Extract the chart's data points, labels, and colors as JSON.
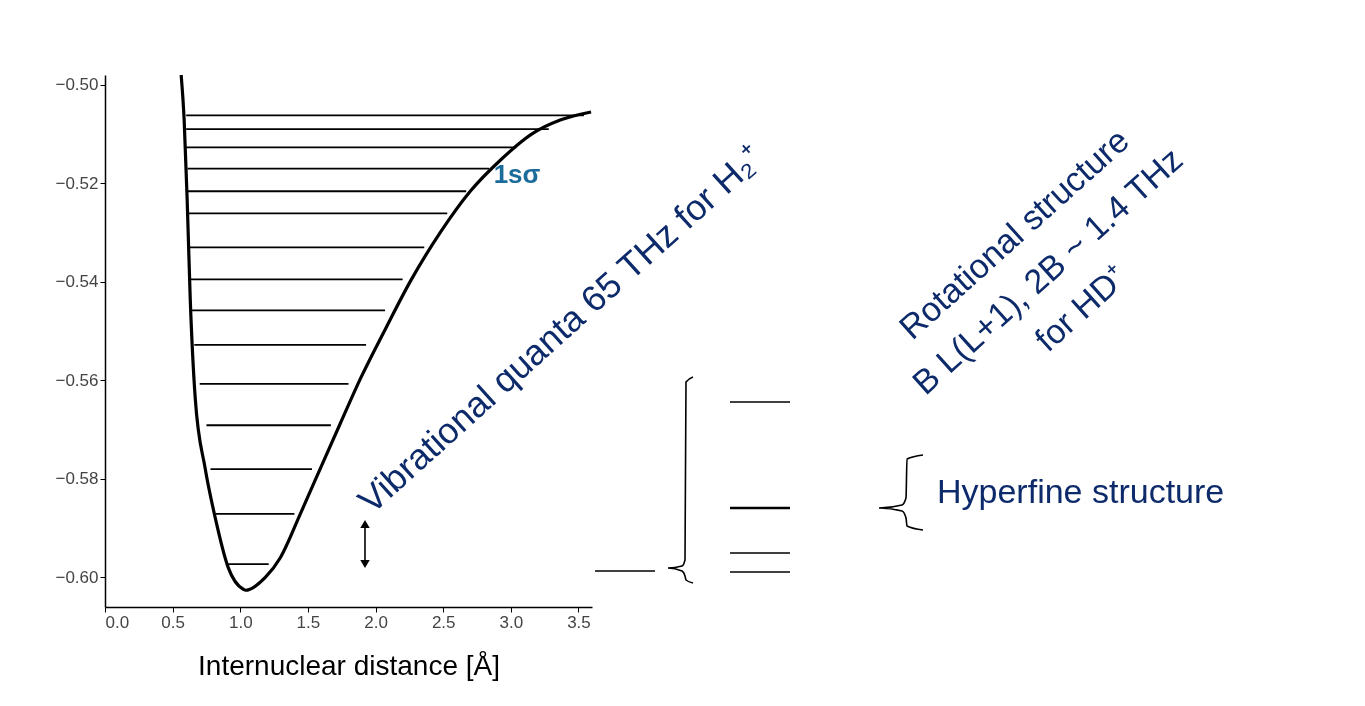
{
  "chart_data": {
    "type": "line",
    "xlabel": "Internuclear distance [Å]",
    "xlim": [
      0,
      3.6
    ],
    "ylim": [
      -0.606,
      -0.498
    ],
    "xticks": [
      {
        "value": 0,
        "label": "0.0"
      },
      {
        "value": 0.5,
        "label": "0.5"
      },
      {
        "value": 1,
        "label": "1.0"
      },
      {
        "value": 1.5,
        "label": "1.5"
      },
      {
        "value": 2,
        "label": "2.0"
      },
      {
        "value": 2.5,
        "label": "2.5"
      },
      {
        "value": 3,
        "label": "3.0"
      },
      {
        "value": 3.5,
        "label": "3.5"
      }
    ],
    "yticks": [
      {
        "value": -0.5,
        "label": "−0.50"
      },
      {
        "value": -0.52,
        "label": "−0.52"
      },
      {
        "value": -0.54,
        "label": "−0.54"
      },
      {
        "value": -0.56,
        "label": "−0.56"
      },
      {
        "value": -0.58,
        "label": "−0.58"
      },
      {
        "value": -0.6,
        "label": "−0.60"
      }
    ],
    "grid": false,
    "marker": "none",
    "line_style": "solid",
    "series": [
      {
        "color": "#000000",
        "x": [
          0.563,
          0.585,
          0.607,
          0.63,
          0.667,
          0.74,
          0.815,
          0.911,
          1.022,
          1.04,
          1.185,
          1.296,
          1.444,
          1.593,
          1.74,
          1.889,
          2.074,
          2.259,
          2.48,
          2.7,
          2.926,
          3.148,
          3.37,
          3.593
        ],
        "values": [
          -0.498,
          -0.507,
          -0.523,
          -0.5434,
          -0.5636,
          -0.5778,
          -0.5879,
          -0.598,
          -0.6024,
          -0.6026,
          -0.6,
          -0.596,
          -0.5871,
          -0.5778,
          -0.5687,
          -0.5596,
          -0.5495,
          -0.5398,
          -0.5299,
          -0.5216,
          -0.5152,
          -0.5101,
          -0.5071,
          -0.5055
        ]
      },
      {
        "color": "#000000",
        "x": [
          0.6,
          3.54
        ],
        "values": [
          -0.5062,
          -0.5062
        ]
      },
      {
        "color": "#000000",
        "x": [
          0.6,
          3.28
        ],
        "values": [
          -0.509,
          -0.509
        ]
      },
      {
        "color": "#000000",
        "x": [
          0.6,
          3.04
        ],
        "values": [
          -0.5127,
          -0.5127
        ]
      },
      {
        "color": "#000000",
        "x": [
          0.61,
          2.84
        ],
        "values": [
          -0.517,
          -0.517
        ]
      },
      {
        "color": "#000000",
        "x": [
          0.61,
          2.67
        ],
        "values": [
          -0.5216,
          -0.5216
        ]
      },
      {
        "color": "#000000",
        "x": [
          0.61,
          2.53
        ],
        "values": [
          -0.5261,
          -0.5261
        ]
      },
      {
        "color": "#000000",
        "x": [
          0.62,
          2.36
        ],
        "values": [
          -0.533,
          -0.533
        ]
      },
      {
        "color": "#000000",
        "x": [
          0.63,
          2.2
        ],
        "values": [
          -0.5395,
          -0.5395
        ]
      },
      {
        "color": "#000000",
        "x": [
          0.64,
          2.07
        ],
        "values": [
          -0.5458,
          -0.5458
        ]
      },
      {
        "color": "#000000",
        "x": [
          0.66,
          1.93
        ],
        "values": [
          -0.5528,
          -0.5528
        ]
      },
      {
        "color": "#000000",
        "x": [
          0.7,
          1.8
        ],
        "values": [
          -0.5607,
          -0.5607
        ]
      },
      {
        "color": "#000000",
        "x": [
          0.75,
          1.67
        ],
        "values": [
          -0.5691,
          -0.5691
        ]
      },
      {
        "color": "#000000",
        "x": [
          0.78,
          1.53
        ],
        "values": [
          -0.578,
          -0.578
        ]
      },
      {
        "color": "#000000",
        "x": [
          0.82,
          1.4
        ],
        "values": [
          -0.5871,
          -0.5871
        ]
      },
      {
        "color": "#000000",
        "x": [
          0.9,
          1.21
        ],
        "values": [
          -0.5973,
          -0.5973
        ]
      }
    ],
    "annotations": [
      "1sσ",
      "Vibrational quanta 65 THz for H₂⁺",
      "Rotational structure B L(L+1), 2B ~ 1.4 THz for HD⁺",
      "Hyperfine structure"
    ]
  }
}
